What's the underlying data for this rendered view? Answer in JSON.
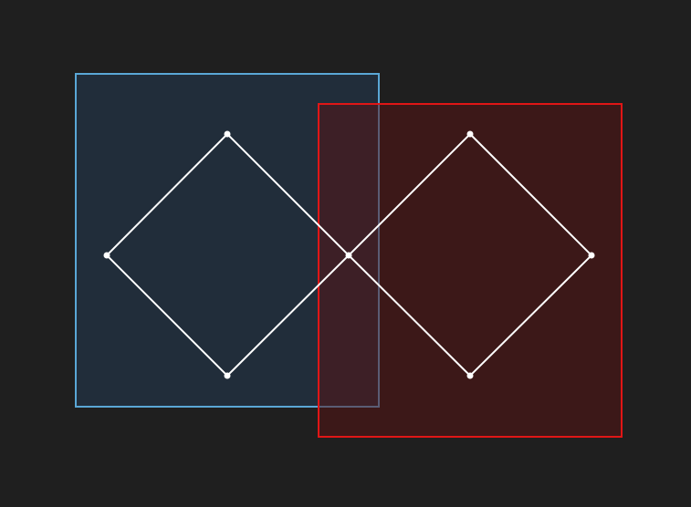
{
  "colors": {
    "background": "#1f1f1f",
    "blue_outline": "#5aa7d6",
    "blue_fill": "#223040",
    "red_outline": "#e01616",
    "red_fill": "#5a1212",
    "diamond_stroke": "#ffffff",
    "vertex_fill": "#ffffff"
  },
  "diagram": {
    "shapes": [
      {
        "name": "blue-rectangle",
        "kind": "rectangle"
      },
      {
        "name": "red-rectangle",
        "kind": "rectangle"
      },
      {
        "name": "left-diamond",
        "kind": "diamond"
      },
      {
        "name": "right-diamond",
        "kind": "diamond"
      }
    ]
  }
}
